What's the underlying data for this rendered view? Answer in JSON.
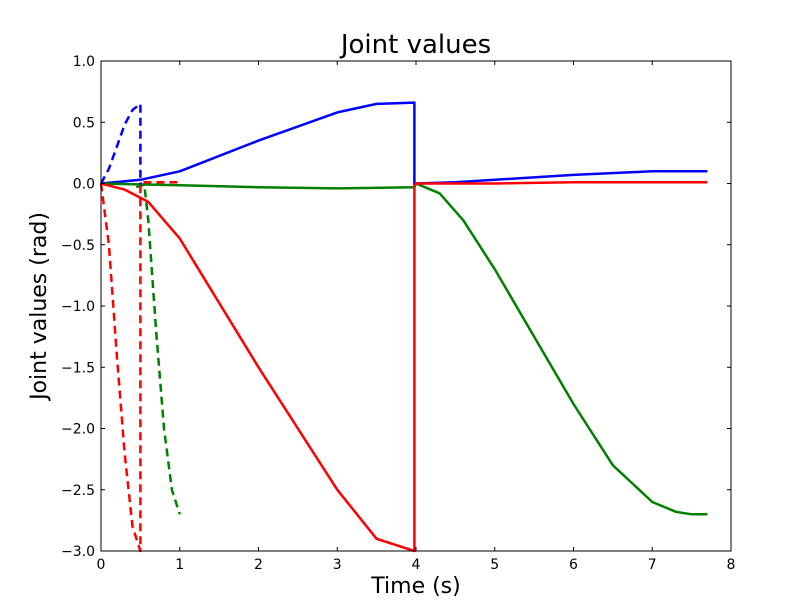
{
  "chart_data": {
    "type": "line",
    "title": "Joint values",
    "xlabel": "Time (s)",
    "ylabel": "Joint values (rad)",
    "xlim": [
      0,
      8
    ],
    "ylim": [
      -3.0,
      1.0
    ],
    "xticks": [
      0,
      1,
      2,
      3,
      4,
      5,
      6,
      7,
      8
    ],
    "yticks": [
      1.0,
      0.5,
      0.0,
      -0.5,
      -1.0,
      -1.5,
      -2.0,
      -2.5,
      -3.0
    ],
    "xtick_labels": [
      "0",
      "1",
      "2",
      "3",
      "4",
      "5",
      "6",
      "7",
      "8"
    ],
    "ytick_labels": [
      "1.0",
      "0.5",
      "0.0",
      "−0.5",
      "−1.0",
      "−1.5",
      "−2.0",
      "−2.5",
      "−3.0"
    ],
    "grid": false,
    "series": [
      {
        "color": "#0000ff",
        "style": "solid",
        "x": [
          0,
          0.5,
          1.0,
          2.0,
          3.0,
          3.5,
          3.98,
          3.98,
          4.0,
          4.5,
          5.0,
          6.0,
          7.0,
          7.7
        ],
        "y": [
          0.0,
          0.03,
          0.1,
          0.35,
          0.58,
          0.65,
          0.66,
          -0.01,
          0.0,
          0.01,
          0.03,
          0.07,
          0.1,
          0.1
        ]
      },
      {
        "color": "#008000",
        "style": "solid",
        "x": [
          0,
          1.0,
          2.0,
          3.0,
          3.98,
          4.0,
          4.3,
          4.6,
          5.0,
          5.5,
          6.0,
          6.5,
          7.0,
          7.3,
          7.5,
          7.7
        ],
        "y": [
          0.0,
          -0.015,
          -0.03,
          -0.04,
          -0.03,
          0.0,
          -0.08,
          -0.3,
          -0.7,
          -1.25,
          -1.8,
          -2.3,
          -2.6,
          -2.68,
          -2.7,
          -2.7
        ]
      },
      {
        "color": "#ff0000",
        "style": "solid",
        "x": [
          0,
          0.3,
          0.6,
          1.0,
          2.0,
          3.0,
          3.5,
          3.98,
          3.98,
          4.0,
          4.5,
          5.0,
          6.0,
          7.0,
          7.7
        ],
        "y": [
          0.0,
          -0.05,
          -0.15,
          -0.45,
          -1.5,
          -2.5,
          -2.9,
          -3.0,
          -0.02,
          0.0,
          0.0,
          0.0,
          0.01,
          0.01,
          0.01
        ]
      },
      {
        "color": "#0000ff",
        "style": "dashed",
        "x": [
          0,
          0.1,
          0.2,
          0.3,
          0.4,
          0.5,
          0.5,
          0.52
        ],
        "y": [
          0.0,
          0.12,
          0.3,
          0.48,
          0.6,
          0.65,
          0.0,
          0.0
        ]
      },
      {
        "color": "#008000",
        "style": "dashed",
        "x": [
          0.45,
          0.5,
          0.55,
          0.6,
          0.7,
          0.8,
          0.9,
          1.0
        ],
        "y": [
          -0.03,
          -0.02,
          -0.01,
          -0.3,
          -1.2,
          -2.0,
          -2.5,
          -2.7
        ]
      },
      {
        "color": "#ff0000",
        "style": "dashed",
        "x": [
          0,
          0.1,
          0.2,
          0.3,
          0.4,
          0.5,
          0.5,
          0.55,
          0.6,
          0.8,
          1.0
        ],
        "y": [
          0.0,
          -0.5,
          -1.4,
          -2.2,
          -2.8,
          -3.0,
          0.0,
          0.01,
          0.01,
          0.01,
          0.01
        ]
      }
    ]
  }
}
